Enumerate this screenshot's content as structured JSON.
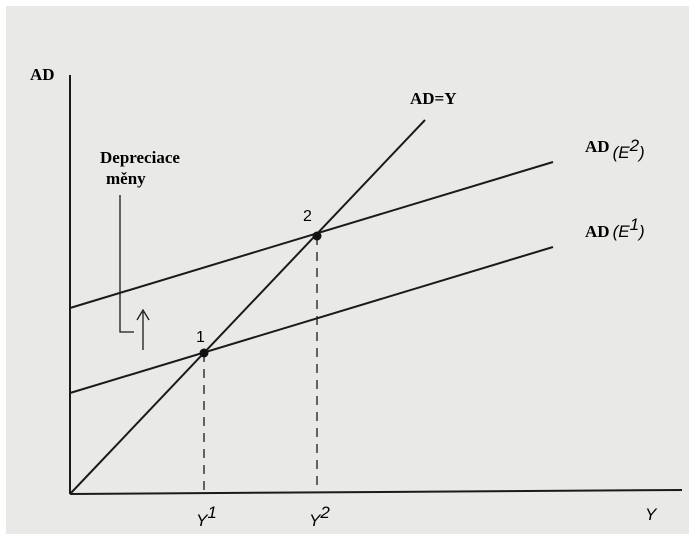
{
  "axes": {
    "y_label": "AD",
    "x_label": "Y"
  },
  "lines": {
    "identity": "AD=Y",
    "upper": {
      "parts": [
        "AD",
        "(E",
        "2",
        ")"
      ]
    },
    "lower": {
      "parts": [
        "AD",
        "(E",
        "1",
        ")"
      ]
    }
  },
  "points": [
    "1",
    "2"
  ],
  "x_marks": [
    [
      "Y",
      "1"
    ],
    [
      "Y",
      "2"
    ]
  ],
  "annotation": [
    "Depreciace",
    "měny"
  ]
}
